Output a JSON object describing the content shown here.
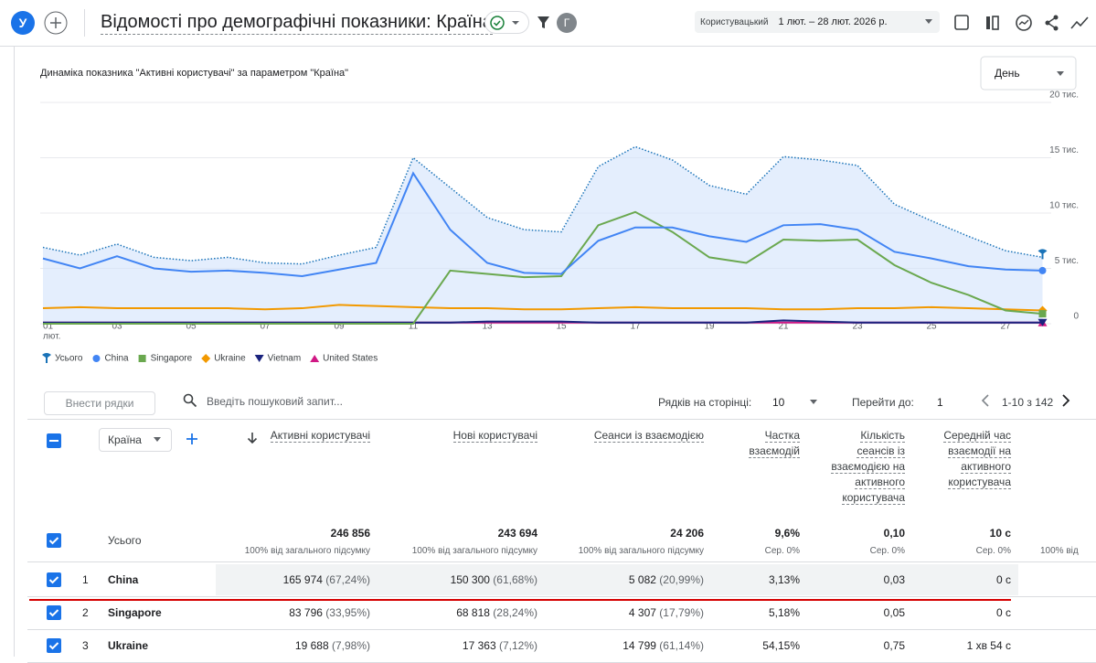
{
  "header": {
    "avatar": "У",
    "title": "Відомості про демографічні показники: Країна",
    "user_badge": "Г",
    "date_mode": "Користувацький",
    "date_range": "1 лют. – 28 лют. 2026 р."
  },
  "chart_data": {
    "type": "line",
    "title": "Динаміка показника \"Активні користувачі\" за параметром \"Країна\"",
    "granularity": "День",
    "categories": [
      "01",
      null,
      "03",
      null,
      "05",
      null,
      "07",
      null,
      "09",
      null,
      "11",
      null,
      "13",
      null,
      "15",
      null,
      "17",
      null,
      "19",
      null,
      "21",
      null,
      "23",
      null,
      "25",
      null,
      "27",
      null
    ],
    "x_month": "лют.",
    "ylim": [
      0,
      20000
    ],
    "yticks": [
      0,
      {
        "value": 5000,
        "label": "5 тис."
      },
      {
        "value": 10000,
        "label": "10 тис."
      },
      {
        "value": 15000,
        "label": "15 тис."
      },
      {
        "value": 20000,
        "label": "20 тис."
      }
    ],
    "grid": true,
    "series": [
      {
        "name": "Усього",
        "color": "#1a73b8",
        "marker": "pin",
        "line_style": "dotted",
        "area": true,
        "values": [
          6900,
          6200,
          7200,
          6000,
          5700,
          6000,
          5500,
          5400,
          6200,
          6900,
          15000,
          12300,
          9600,
          8500,
          8300,
          14200,
          16000,
          14800,
          12500,
          11700,
          15100,
          14800,
          14300,
          10800,
          9300,
          7900,
          6600,
          6000
        ]
      },
      {
        "name": "China",
        "color": "#4285f4",
        "marker": "circle",
        "values": [
          5900,
          5000,
          6100,
          5000,
          4700,
          4800,
          4600,
          4300,
          4900,
          5500,
          13600,
          8500,
          5500,
          4600,
          4500,
          7500,
          8700,
          8700,
          7900,
          7400,
          8900,
          9000,
          8500,
          6500,
          5900,
          5200,
          4900,
          4800
        ]
      },
      {
        "name": "Singapore",
        "color": "#6aa84f",
        "marker": "square",
        "values": [
          0,
          0,
          0,
          0,
          0,
          0,
          0,
          0,
          0,
          0,
          0,
          4800,
          4500,
          4200,
          4300,
          8900,
          10100,
          8300,
          6000,
          5500,
          7600,
          7500,
          7600,
          5300,
          3700,
          2600,
          1200,
          900
        ]
      },
      {
        "name": "Ukraine",
        "color": "#f29900",
        "marker": "diamond",
        "values": [
          1400,
          1500,
          1400,
          1400,
          1400,
          1400,
          1300,
          1400,
          1700,
          1600,
          1500,
          1400,
          1400,
          1300,
          1300,
          1400,
          1500,
          1400,
          1400,
          1400,
          1300,
          1300,
          1400,
          1400,
          1500,
          1400,
          1300,
          1200
        ]
      },
      {
        "name": "Vietnam",
        "color": "#1a237e",
        "marker": "triangle-down",
        "values": [
          100,
          100,
          100,
          100,
          100,
          100,
          100,
          100,
          100,
          100,
          100,
          100,
          200,
          200,
          200,
          100,
          100,
          100,
          100,
          100,
          300,
          200,
          100,
          100,
          100,
          100,
          100,
          100
        ]
      },
      {
        "name": "United States",
        "color": "#d01884",
        "marker": "triangle-up",
        "values": [
          100,
          100,
          100,
          100,
          100,
          100,
          100,
          100,
          100,
          100,
          100,
          100,
          100,
          100,
          100,
          100,
          100,
          100,
          100,
          100,
          100,
          100,
          100,
          100,
          100,
          100,
          100,
          100
        ]
      }
    ]
  },
  "table": {
    "toolbar": {
      "add_rows": "Внести рядки",
      "search_placeholder": "Введіть пошуковий запит...",
      "rows_per_page_label": "Рядків на сторінці:",
      "rows_per_page": "10",
      "goto_label": "Перейти до:",
      "goto_page": "1",
      "range": "1-10 з 142"
    },
    "dimension": "Країна",
    "columns": [
      "Активні користувачі",
      "Нові користувачі",
      "Сеанси із взаємодією",
      "Частка взаємодій",
      "Кількість сеансів із взаємодією на активного користувача",
      "Середній час взаємодії на активного користувача"
    ],
    "totals": {
      "label": "Усього",
      "cells": [
        [
          "246 856",
          "100% від загального підсумку"
        ],
        [
          "243 694",
          "100% від загального підсумку"
        ],
        [
          "24 206",
          "100% від загального підсумку"
        ],
        [
          "9,6%",
          "Сер. 0%"
        ],
        [
          "0,10",
          "Сер. 0%"
        ],
        [
          "10 с",
          "Сер. 0%"
        ]
      ],
      "overflow": "100% від"
    },
    "rows": [
      {
        "index": "1",
        "country": "China",
        "cells": [
          [
            "165 974",
            "(67,24%)"
          ],
          [
            "150 300",
            "(61,68%)"
          ],
          [
            "5 082",
            "(20,99%)"
          ],
          [
            "3,13%"
          ],
          [
            "0,03"
          ],
          [
            "0 с"
          ]
        ]
      },
      {
        "index": "2",
        "country": "Singapore",
        "cells": [
          [
            "83 796",
            "(33,95%)"
          ],
          [
            "68 818",
            "(28,24%)"
          ],
          [
            "4 307",
            "(17,79%)"
          ],
          [
            "5,18%"
          ],
          [
            "0,05"
          ],
          [
            "0 с"
          ]
        ]
      },
      {
        "index": "3",
        "country": "Ukraine",
        "cells": [
          [
            "19 688",
            "(7,98%)"
          ],
          [
            "17 363",
            "(7,12%)"
          ],
          [
            "14 799",
            "(61,14%)"
          ],
          [
            "54,15%"
          ],
          [
            "0,75"
          ],
          [
            "1 хв 54 с"
          ]
        ]
      }
    ]
  }
}
